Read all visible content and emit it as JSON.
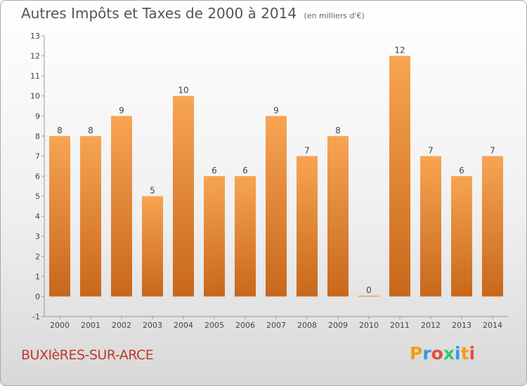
{
  "title": {
    "main": "Autres Impôts et Taxes de 2000 à 2014",
    "unit": "(en milliers d'€)"
  },
  "commune": "BUXIèRES-SUR-ARCE",
  "logo": {
    "text": "Proxiti",
    "colors": [
      "#f39c12",
      "#3498db",
      "#e74c3c",
      "#2ecc71",
      "#3498db",
      "#f39c12",
      "#e74c3c"
    ]
  },
  "colors": {
    "bar_top": "#f7a552",
    "bar_bottom": "#c8671b",
    "label": "#444444"
  },
  "chart_data": {
    "type": "bar",
    "categories": [
      "2000",
      "2001",
      "2002",
      "2003",
      "2004",
      "2005",
      "2006",
      "2007",
      "2008",
      "2009",
      "2010",
      "2011",
      "2012",
      "2013",
      "2014"
    ],
    "values": [
      8,
      8,
      9,
      5,
      10,
      6,
      6,
      9,
      7,
      8,
      0,
      12,
      7,
      6,
      7
    ],
    "ylim": [
      -1,
      13
    ],
    "yticks": [
      -1,
      0,
      1,
      2,
      3,
      4,
      5,
      6,
      7,
      8,
      9,
      10,
      11,
      12,
      13
    ],
    "grid": false,
    "data_labels": true
  }
}
